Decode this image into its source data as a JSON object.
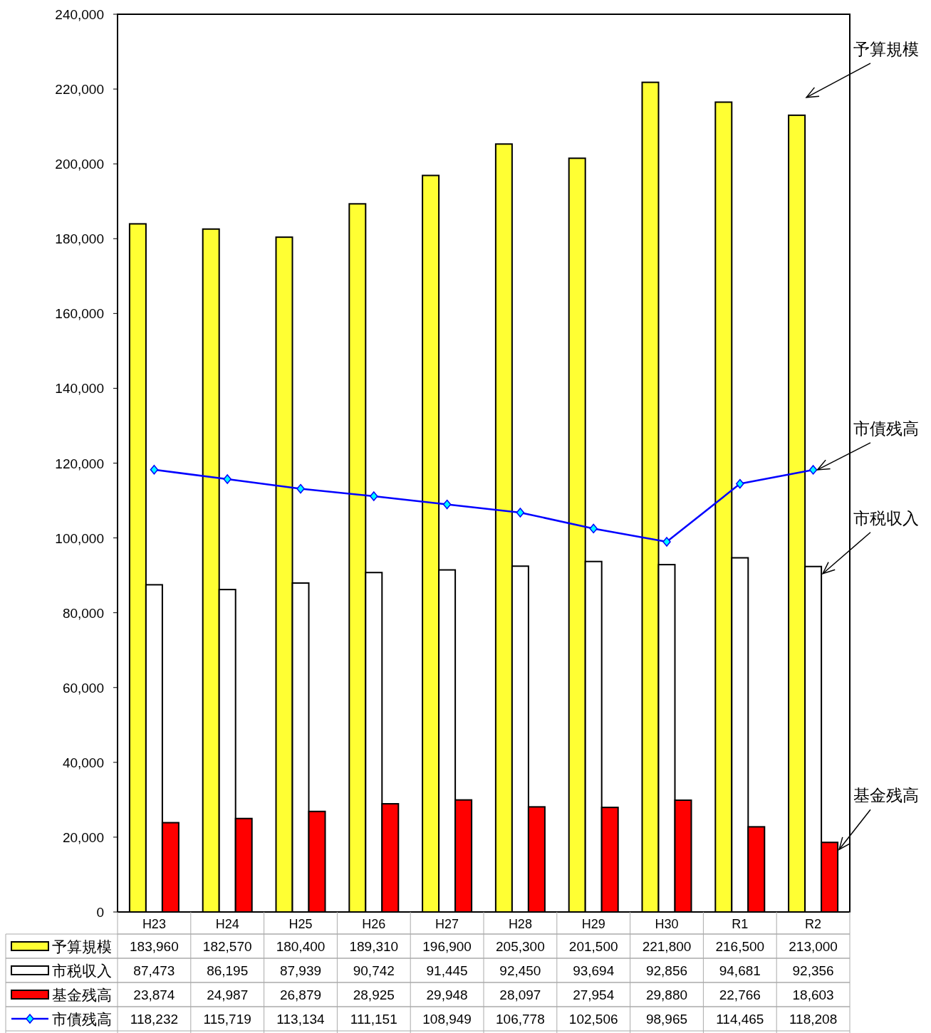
{
  "chart_data": {
    "type": "bar",
    "categories": [
      "H23",
      "H24",
      "H25",
      "H26",
      "H27",
      "H28",
      "H29",
      "H30",
      "R1",
      "R2"
    ],
    "series": [
      {
        "name": "予算規模",
        "color": "#ffff33",
        "values": [
          183960,
          182570,
          180400,
          189310,
          196900,
          205300,
          201500,
          221800,
          216500,
          213000
        ],
        "value_labels": [
          "183,960",
          "182,570",
          "180,400",
          "189,310",
          "196,900",
          "205,300",
          "201,500",
          "221,800",
          "216,500",
          "213,000"
        ]
      },
      {
        "name": "市税収入",
        "color": "#ffffff",
        "values": [
          87473,
          86195,
          87939,
          90742,
          91445,
          92450,
          93694,
          92856,
          94681,
          92356
        ],
        "value_labels": [
          "87,473",
          "86,195",
          "87,939",
          "90,742",
          "91,445",
          "92,450",
          "93,694",
          "92,856",
          "94,681",
          "92,356"
        ]
      },
      {
        "name": "基金残高",
        "color": "#ff0000",
        "values": [
          23874,
          24987,
          26879,
          28925,
          29948,
          28097,
          27954,
          29880,
          22766,
          18603
        ],
        "value_labels": [
          "23,874",
          "24,987",
          "26,879",
          "28,925",
          "29,948",
          "28,097",
          "27,954",
          "29,880",
          "22,766",
          "18,603"
        ]
      },
      {
        "name": "市債残高",
        "type": "line",
        "color": "#0000ff",
        "values": [
          118232,
          115719,
          113134,
          111151,
          108949,
          106778,
          102506,
          98965,
          114465,
          118208
        ],
        "value_labels": [
          "118,232",
          "115,719",
          "113,134",
          "111,151",
          "108,949",
          "106,778",
          "102,506",
          "98,965",
          "114,465",
          "118,208"
        ]
      }
    ],
    "ylim": [
      0,
      240000
    ],
    "yticks": [
      {
        "value": 0,
        "label": "0"
      },
      {
        "value": 20000,
        "label": "20,000"
      },
      {
        "value": 40000,
        "label": "40,000"
      },
      {
        "value": 60000,
        "label": "60,000"
      },
      {
        "value": 80000,
        "label": "80,000"
      },
      {
        "value": 100000,
        "label": "100,000"
      },
      {
        "value": 120000,
        "label": "120,000"
      },
      {
        "value": 140000,
        "label": "140,000"
      },
      {
        "value": 160000,
        "label": "160,000"
      },
      {
        "value": 180000,
        "label": "180,000"
      },
      {
        "value": 200000,
        "label": "200,000"
      },
      {
        "value": 220000,
        "label": "220,000"
      },
      {
        "value": 240000,
        "label": "240,000"
      }
    ],
    "legend": "bottom",
    "marker": "diamond"
  }
}
